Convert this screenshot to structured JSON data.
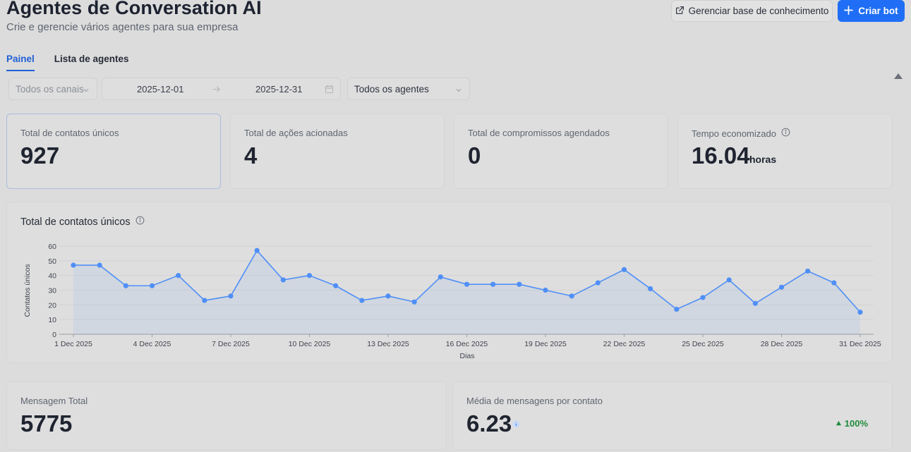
{
  "header": {
    "title": "Agentes de Conversation AI",
    "subtitle": "Crie e gerencie vários agentes para sua empresa",
    "knowledge_button": "Gerenciar base de conhecimento",
    "create_button": "Criar bot"
  },
  "tabs": [
    {
      "label": "Painel",
      "active": true
    },
    {
      "label": "Lista de agentes",
      "active": false
    }
  ],
  "filters": {
    "channel": "Todos os canais",
    "date_start": "2025-12-01",
    "date_end": "2025-12-31",
    "agent": "Todos os agentes"
  },
  "stats": [
    {
      "label": "Total de contatos únicos",
      "value": "927"
    },
    {
      "label": "Total de ações acionadas",
      "value": "4"
    },
    {
      "label": "Total de compromissos agendados",
      "value": "0"
    },
    {
      "label": "Tempo economizado",
      "value": "16.04",
      "unit": "horas"
    }
  ],
  "bottom_stats": [
    {
      "label": "Mensagem Total",
      "value": "5775"
    },
    {
      "label": "Média de mensagens por contato",
      "value": "6.23",
      "trend": "100%"
    }
  ],
  "colors": {
    "accent": "#1f6ef5",
    "tab_active": "#1f5fd6",
    "line": "#4f8ff7",
    "trend_up": "#1f8a3c"
  },
  "chart_data": {
    "type": "line",
    "title": "Total de contatos únicos",
    "xlabel": "Dias",
    "ylabel": "Contatos únicos",
    "ylim": [
      0,
      60
    ],
    "yticks": [
      0,
      10,
      20,
      30,
      40,
      50,
      60
    ],
    "x": [
      "1 Dec 2025",
      "2 Dec 2025",
      "3 Dec 2025",
      "4 Dec 2025",
      "5 Dec 2025",
      "6 Dec 2025",
      "7 Dec 2025",
      "8 Dec 2025",
      "9 Dec 2025",
      "10 Dec 2025",
      "11 Dec 2025",
      "12 Dec 2025",
      "13 Dec 2025",
      "14 Dec 2025",
      "15 Dec 2025",
      "16 Dec 2025",
      "17 Dec 2025",
      "18 Dec 2025",
      "19 Dec 2025",
      "20 Dec 2025",
      "21 Dec 2025",
      "22 Dec 2025",
      "23 Dec 2025",
      "24 Dec 2025",
      "25 Dec 2025",
      "26 Dec 2025",
      "27 Dec 2025",
      "28 Dec 2025",
      "29 Dec 2025",
      "30 Dec 2025",
      "31 Dec 2025"
    ],
    "xtick_labels": [
      "1 Dec 2025",
      "4 Dec 2025",
      "7 Dec 2025",
      "10 Dec 2025",
      "13 Dec 2025",
      "16 Dec 2025",
      "19 Dec 2025",
      "22 Dec 2025",
      "25 Dec 2025",
      "28 Dec 2025",
      "31 Dec 2025"
    ],
    "series": [
      {
        "values": [
          47,
          47,
          33,
          33,
          40,
          23,
          26,
          57,
          37,
          40,
          33,
          23,
          26,
          22,
          39,
          34,
          34,
          34,
          30,
          26,
          35,
          44,
          31,
          17,
          25,
          37,
          21,
          32,
          43,
          35,
          15
        ]
      }
    ],
    "grid": true
  }
}
